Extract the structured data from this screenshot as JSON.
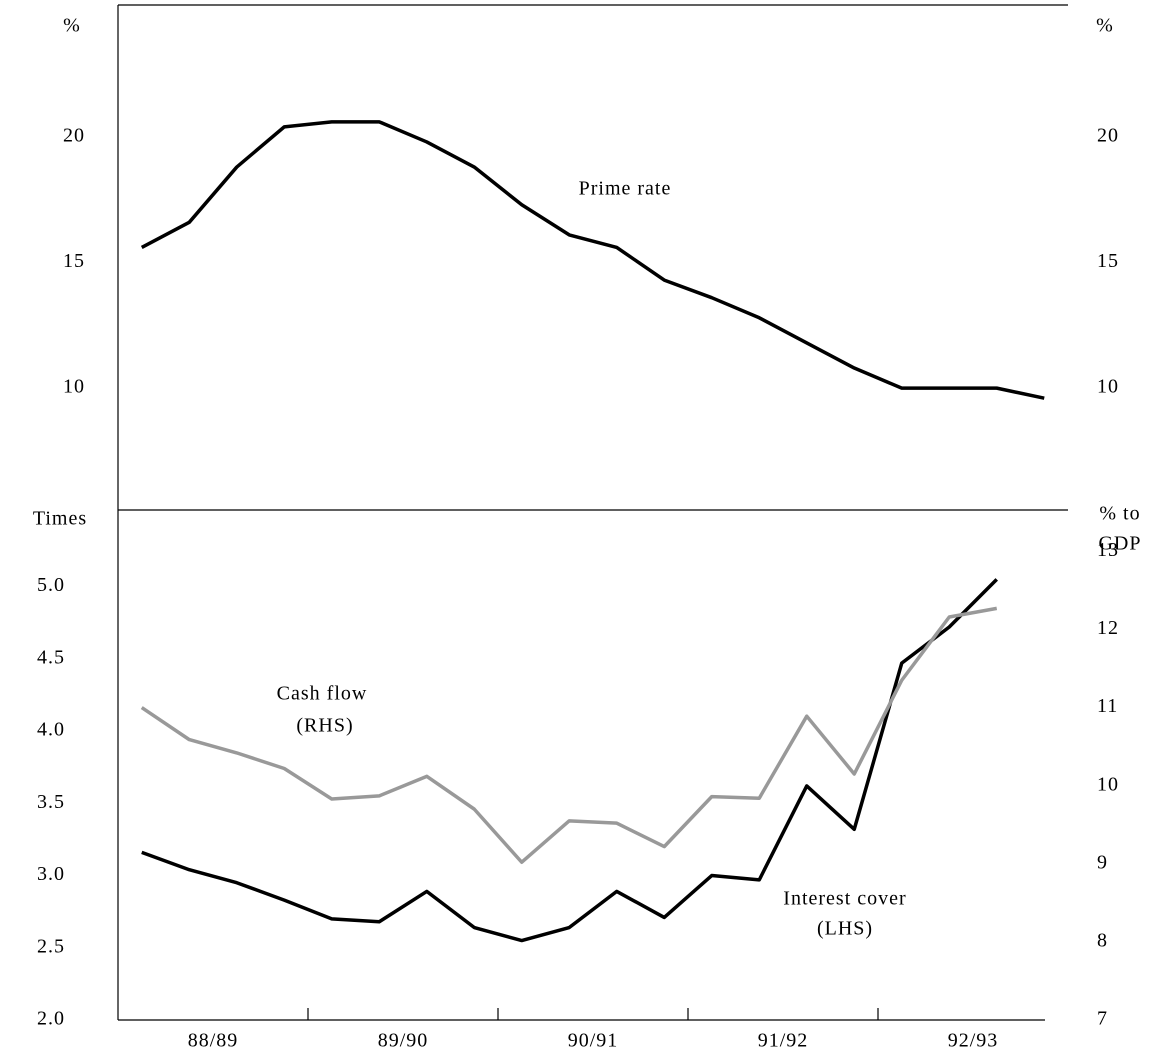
{
  "chart_data": [
    {
      "type": "line",
      "y_label": "%",
      "y2_label": "%",
      "categories": [
        null,
        null,
        null,
        null,
        null,
        null,
        null,
        null,
        null,
        null,
        null,
        null,
        null,
        null,
        null,
        null,
        null,
        null,
        null,
        null
      ],
      "ylim": [
        5.15,
        25.25
      ],
      "yticks": [
        10,
        15,
        20
      ],
      "y2lim": [
        5.15,
        25.25
      ],
      "y2ticks": [
        10,
        15,
        20
      ],
      "annotations": [
        [
          "Prime rate"
        ]
      ],
      "series": [
        {
          "name": "Prime rate",
          "color": "#000000",
          "values": [
            15.6,
            16.6,
            18.8,
            20.4,
            20.6,
            20.6,
            19.8,
            18.8,
            17.3,
            16.1,
            15.6,
            14.3,
            13.6,
            12.8,
            11.8,
            10.8,
            10.0,
            10.0,
            10.0,
            9.6
          ]
        }
      ]
    },
    {
      "type": "line",
      "y_label": "Times",
      "y2_label": [
        "% to",
        "GDP"
      ],
      "categories": [
        "88/89",
        null,
        null,
        null,
        "89/90",
        null,
        null,
        null,
        "90/91",
        null,
        null,
        null,
        "91/92",
        null,
        null,
        null,
        "92/93",
        null,
        null,
        null
      ],
      "ylim": [
        2.0,
        5.53
      ],
      "yticks": [
        {
          "value": 2.0,
          "label": "2.0"
        },
        2.5,
        {
          "value": 3.0,
          "label": "3.0"
        },
        3.5,
        {
          "value": 4.0,
          "label": "4.0"
        },
        4.5,
        {
          "value": 5.0,
          "label": "5.0"
        }
      ],
      "y2lim": [
        7,
        13.53
      ],
      "y2ticks": [
        7,
        8,
        9,
        10,
        11,
        12,
        13
      ],
      "annotations": [
        [
          "Cash flow",
          "(RHS)"
        ],
        [
          "Interest cover",
          "(LHS)"
        ]
      ],
      "series": [
        {
          "name": "Interest cover (LHS)",
          "color": "#000000",
          "values": [
            3.16,
            3.04,
            2.95,
            2.83,
            2.7,
            2.68,
            2.89,
            2.64,
            2.55,
            2.64,
            2.89,
            2.71,
            3.0,
            2.97,
            3.62,
            3.32,
            4.47,
            4.72,
            5.05,
            null
          ]
        },
        {
          "name": "Cash flow (RHS)",
          "color": "#999999",
          "axis": "y2",
          "values": [
            11.0,
            10.59,
            10.42,
            10.22,
            9.83,
            9.87,
            10.12,
            9.7,
            9.02,
            9.55,
            9.52,
            9.22,
            9.86,
            9.84,
            10.89,
            10.15,
            11.35,
            12.16,
            12.27,
            null
          ]
        }
      ]
    }
  ]
}
